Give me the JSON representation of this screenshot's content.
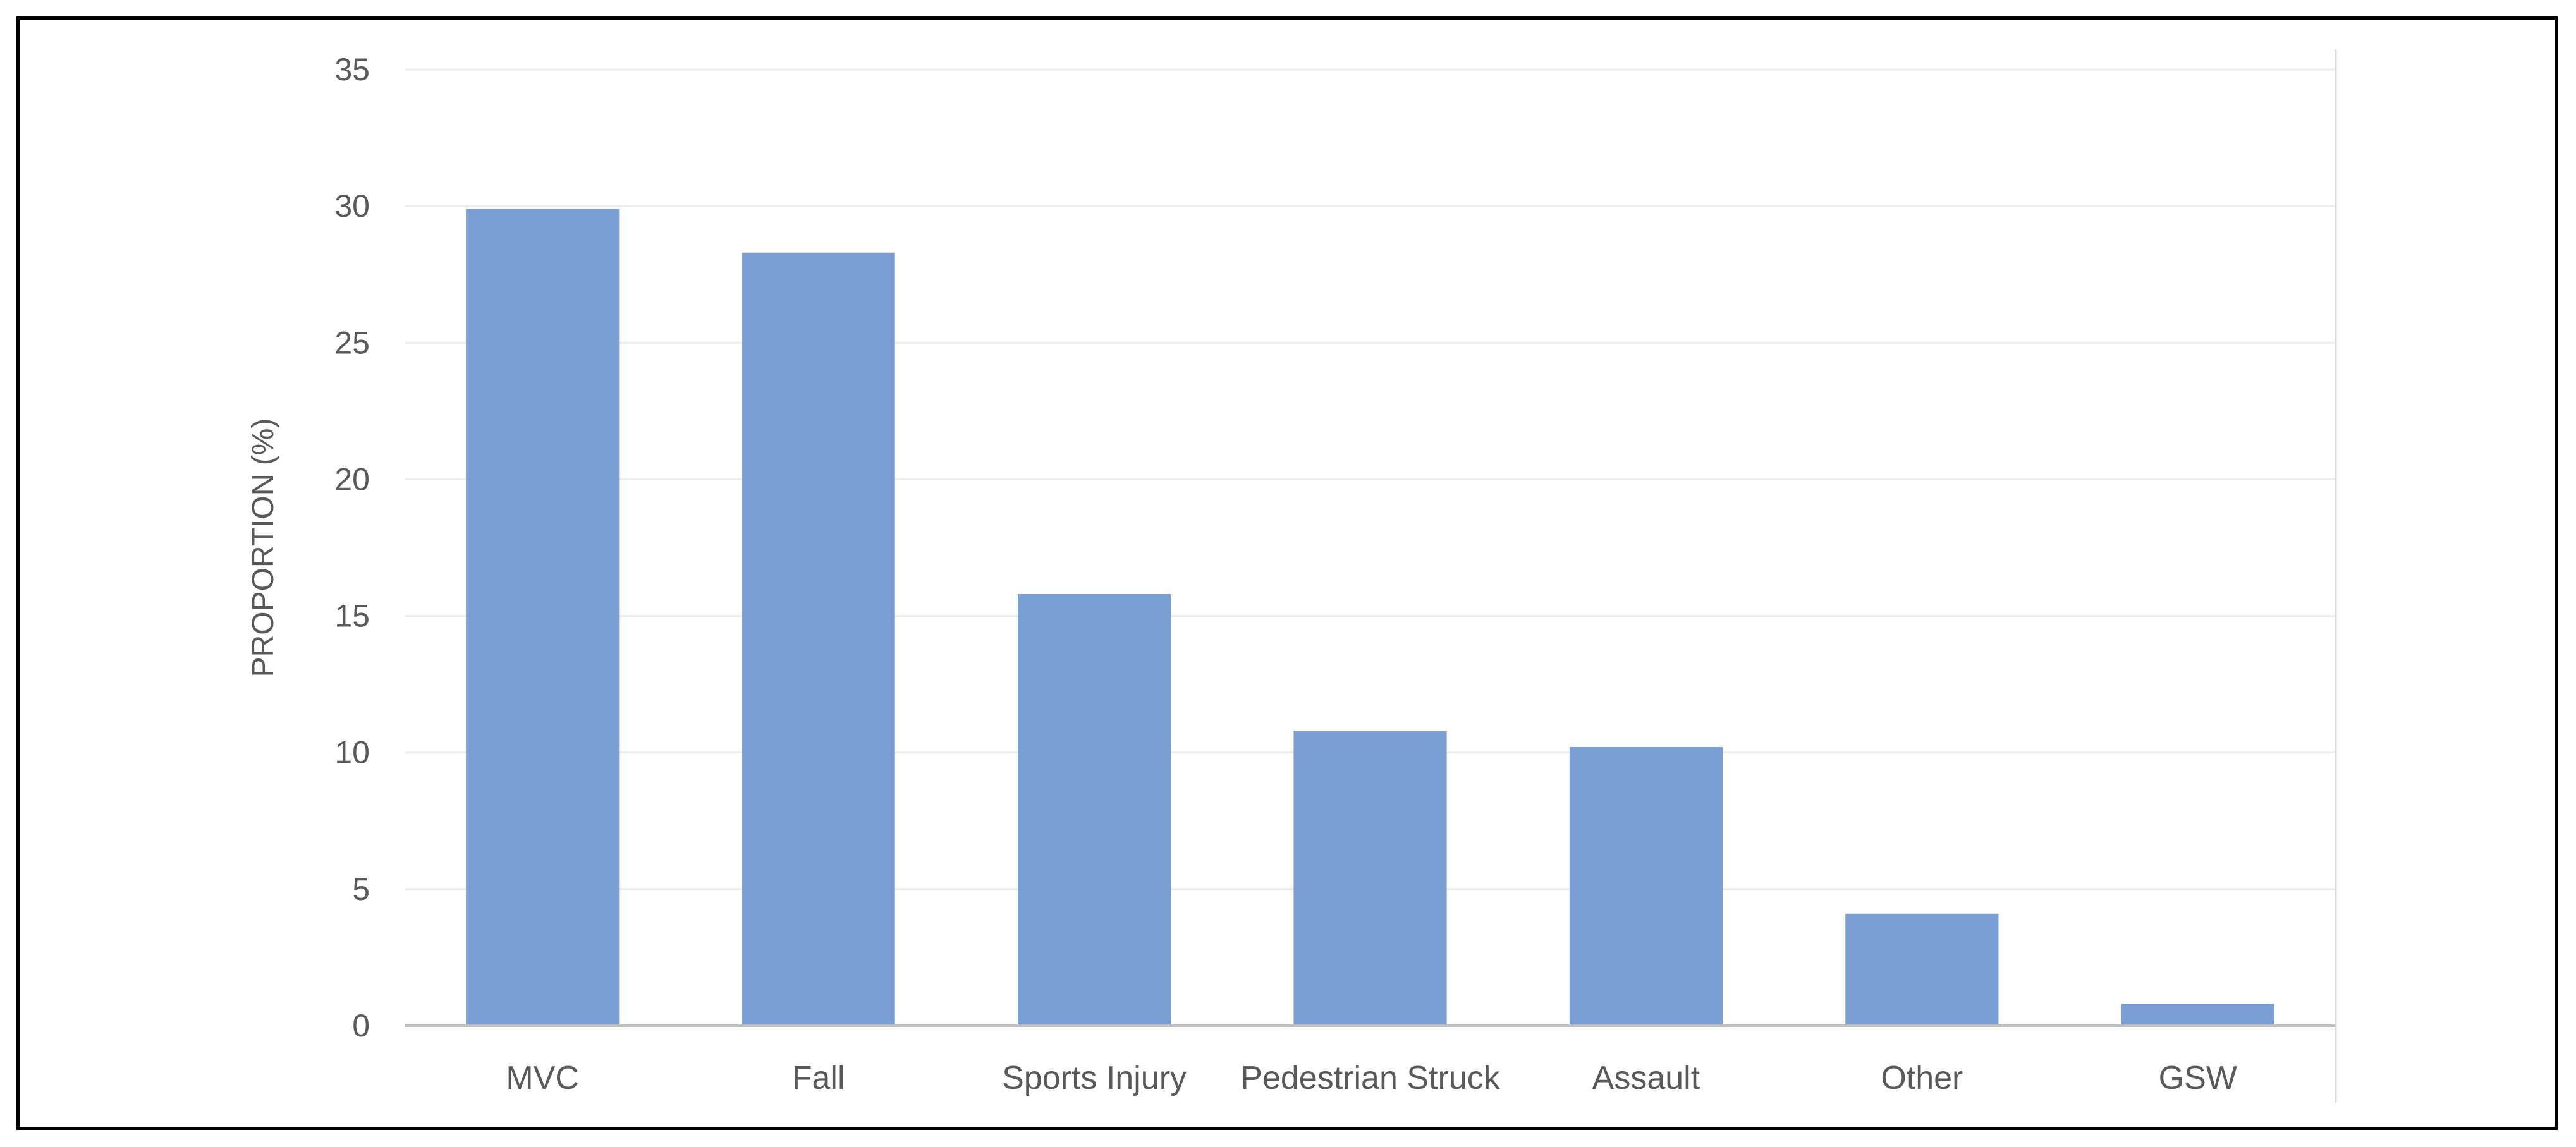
{
  "chart_data": {
    "type": "bar",
    "title": "",
    "xlabel": "",
    "ylabel": "PROPORTION (%)",
    "categories": [
      "MVC",
      "Fall",
      "Sports Injury",
      "Pedestrian Struck",
      "Assault",
      "Other",
      "GSW"
    ],
    "values": [
      29.9,
      28.3,
      15.8,
      10.8,
      10.2,
      4.1,
      0.8
    ],
    "ylim": [
      0,
      35
    ],
    "yticks": [
      0,
      5,
      10,
      15,
      20,
      25,
      30,
      35
    ],
    "grid": true,
    "legend": "none",
    "bar_color": "#7b9fd5",
    "grid_color": "#ebebeb",
    "axis_color": "#bfbfbf",
    "text_color": "#595959"
  }
}
